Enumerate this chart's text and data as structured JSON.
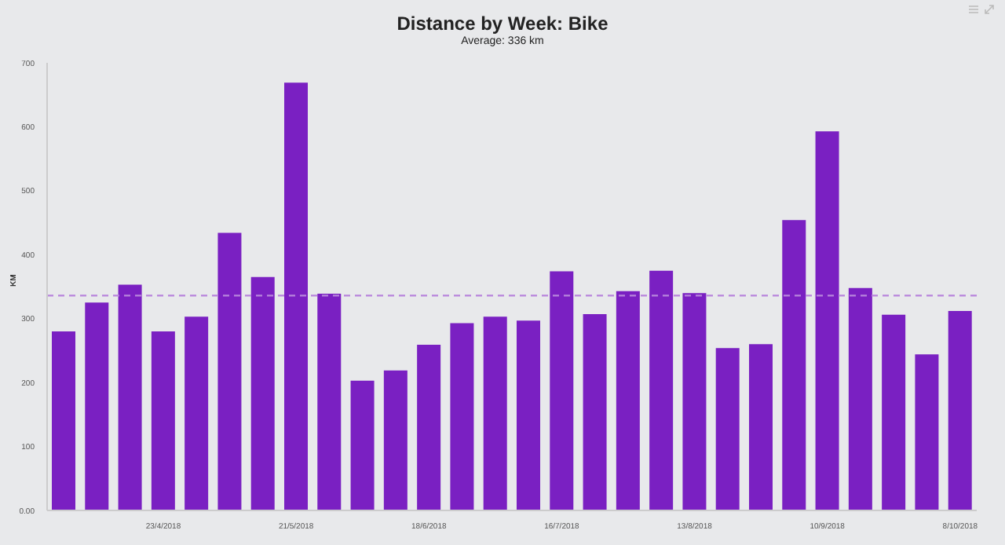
{
  "chart_data": {
    "type": "bar",
    "title": "Distance by Week: Bike",
    "subtitle": "Average: 336 km",
    "ylabel": "KM",
    "categories": [
      null,
      null,
      null,
      "23/4/2018",
      null,
      null,
      null,
      "21/5/2018",
      null,
      null,
      null,
      "18/6/2018",
      null,
      null,
      null,
      "16/7/2018",
      null,
      null,
      null,
      "13/8/2018",
      null,
      null,
      null,
      "10/9/2018",
      null,
      null,
      null,
      "8/10/2018"
    ],
    "values": [
      280,
      325,
      353,
      280,
      303,
      434,
      365,
      669,
      339,
      203,
      219,
      259,
      293,
      303,
      297,
      374,
      307,
      343,
      375,
      340,
      254,
      260,
      454,
      593,
      348,
      306,
      244,
      312
    ],
    "color": "#7a20c2",
    "ylim": [
      0,
      700
    ],
    "yticks": [
      {
        "value": 0,
        "label": "0.00"
      },
      100,
      200,
      300,
      400,
      500,
      600,
      700
    ],
    "ref_lines": [
      {
        "axis": "y",
        "value": 336,
        "color": "#b784dc",
        "line_style": "dashed"
      }
    ],
    "grid": false,
    "legend": false
  }
}
